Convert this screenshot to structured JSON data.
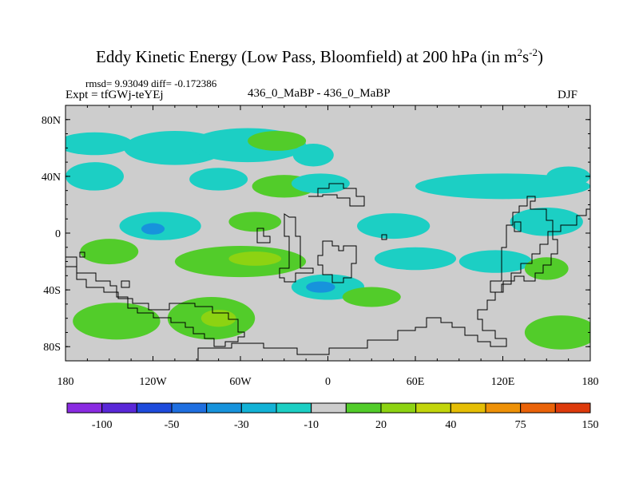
{
  "chart_data": {
    "type": "heatmap",
    "title": {
      "main": "Eddy Kinetic Energy (Low Pass, Bloomfield) at 200 hPa (in m",
      "sup1": "2",
      "mid": "s",
      "sup2": "-2",
      "end": ")"
    },
    "stats": "rmsd= 9.93049 diff= -0.172386",
    "expt_label": "Expt = tfGWj-teYEj",
    "center_label": "436_0_MaBP - 436_0_MaBP",
    "season_label": "DJF",
    "xlim": [
      -180,
      180
    ],
    "ylim": [
      -90,
      90
    ],
    "x_ticks": [
      {
        "value": -180,
        "label": "180"
      },
      {
        "value": -120,
        "label": "120W"
      },
      {
        "value": -60,
        "label": "60W"
      },
      {
        "value": 0,
        "label": "0"
      },
      {
        "value": 60,
        "label": "60E"
      },
      {
        "value": 120,
        "label": "120E"
      },
      {
        "value": 180,
        "label": "180"
      }
    ],
    "y_ticks": [
      {
        "value": 80,
        "label": "80N"
      },
      {
        "value": 40,
        "label": "40N"
      },
      {
        "value": 0,
        "label": "0"
      },
      {
        "value": -40,
        "label": "40S"
      },
      {
        "value": -80,
        "label": "80S"
      }
    ],
    "colorbar": {
      "colors": [
        "#8a2be2",
        "#5a28d8",
        "#1e4bdc",
        "#1f6fe0",
        "#1793dc",
        "#13b2d6",
        "#1ccfc4",
        "#cdcdcd",
        "#52cc2a",
        "#8dd312",
        "#c2d50b",
        "#e5be05",
        "#ee9107",
        "#ea6309",
        "#dd3a0b"
      ],
      "labels": [
        {
          "after": 1,
          "text": "-100"
        },
        {
          "after": 3,
          "text": "-50"
        },
        {
          "after": 5,
          "text": "-30"
        },
        {
          "after": 7,
          "text": "-10"
        },
        {
          "after": 9,
          "text": "20"
        },
        {
          "after": 11,
          "text": "40"
        },
        {
          "after": 13,
          "text": "75"
        },
        {
          "after": 15,
          "text": "150"
        }
      ]
    },
    "background_color": "#cdcdcd",
    "regions": [
      {
        "name": "NH cyan band west",
        "lon": -160,
        "lat": 63,
        "dlon": 26,
        "dlat": 8,
        "color": "#1ccfc4"
      },
      {
        "name": "NH cyan band center",
        "lon": -105,
        "lat": 60,
        "dlon": 35,
        "dlat": 12,
        "color": "#1ccfc4"
      },
      {
        "name": "NH cyan band east",
        "lon": -55,
        "lat": 62,
        "dlon": 40,
        "dlat": 12,
        "color": "#1ccfc4"
      },
      {
        "name": "NH green patch",
        "lon": -35,
        "lat": 65,
        "dlon": 20,
        "dlat": 7,
        "color": "#52cc2a"
      },
      {
        "name": "N Atlantic cyan",
        "lon": -10,
        "lat": 55,
        "dlon": 14,
        "dlat": 8,
        "color": "#1ccfc4"
      },
      {
        "name": "W Pacific cyan arm",
        "lon": -160,
        "lat": 40,
        "dlon": 20,
        "dlat": 10,
        "color": "#1ccfc4"
      },
      {
        "name": "Mid-lat green patch",
        "lon": -30,
        "lat": 33,
        "dlon": 22,
        "dlat": 8,
        "color": "#52cc2a"
      },
      {
        "name": "Mid-lat cyan west",
        "lon": -75,
        "lat": 38,
        "dlon": 20,
        "dlat": 8,
        "color": "#1ccfc4"
      },
      {
        "name": "Mid-lat cyan central",
        "lon": -5,
        "lat": 35,
        "dlon": 20,
        "dlat": 7,
        "color": "#1ccfc4"
      },
      {
        "name": "E hemisphere cyan band",
        "lon": 120,
        "lat": 33,
        "dlon": 60,
        "dlat": 9,
        "color": "#1ccfc4"
      },
      {
        "name": "Far east cyan",
        "lon": 165,
        "lat": 40,
        "dlon": 15,
        "dlat": 7,
        "color": "#1ccfc4"
      },
      {
        "name": "Tropical cyan west",
        "lon": -115,
        "lat": 5,
        "dlon": 28,
        "dlat": 10,
        "color": "#1ccfc4"
      },
      {
        "name": "Tropical blue core",
        "lon": -120,
        "lat": 3,
        "dlon": 8,
        "dlat": 4,
        "color": "#1793dc"
      },
      {
        "name": "Tropical green",
        "lon": -50,
        "lat": 8,
        "dlon": 18,
        "dlat": 7,
        "color": "#52cc2a"
      },
      {
        "name": "Africa cyan",
        "lon": 45,
        "lat": 5,
        "dlon": 25,
        "dlat": 9,
        "color": "#1ccfc4"
      },
      {
        "name": "E Pacific cyan",
        "lon": 150,
        "lat": 8,
        "dlon": 25,
        "dlat": 10,
        "color": "#1ccfc4"
      },
      {
        "name": "S cyan band",
        "lon": 60,
        "lat": -18,
        "dlon": 28,
        "dlat": 8,
        "color": "#1ccfc4"
      },
      {
        "name": "S green west",
        "lon": -150,
        "lat": -13,
        "dlon": 20,
        "dlat": 9,
        "color": "#52cc2a"
      },
      {
        "name": "S green central",
        "lon": -60,
        "lat": -20,
        "dlon": 45,
        "dlat": 11,
        "color": "#52cc2a"
      },
      {
        "name": "S yellow-green core",
        "lon": -50,
        "lat": -18,
        "dlon": 18,
        "dlat": 5,
        "color": "#8dd312"
      },
      {
        "name": "SW cyan",
        "lon": 0,
        "lat": -38,
        "dlon": 25,
        "dlat": 9,
        "color": "#1ccfc4"
      },
      {
        "name": "SW blue core",
        "lon": -5,
        "lat": -38,
        "dlon": 10,
        "dlat": 4,
        "color": "#1793dc"
      },
      {
        "name": "S green east",
        "lon": 30,
        "lat": -45,
        "dlon": 20,
        "dlat": 7,
        "color": "#52cc2a"
      },
      {
        "name": "S cyan east",
        "lon": 115,
        "lat": -20,
        "dlon": 25,
        "dlat": 8,
        "color": "#1ccfc4"
      },
      {
        "name": "S green far east",
        "lon": 150,
        "lat": -25,
        "dlon": 15,
        "dlat": 8,
        "color": "#52cc2a"
      },
      {
        "name": "SH green band west",
        "lon": -145,
        "lat": -62,
        "dlon": 30,
        "dlat": 13,
        "color": "#52cc2a"
      },
      {
        "name": "SH green band central",
        "lon": -80,
        "lat": -60,
        "dlon": 30,
        "dlat": 15,
        "color": "#52cc2a"
      },
      {
        "name": "SH yellow-green core",
        "lon": -75,
        "lat": -60,
        "dlon": 12,
        "dlat": 6,
        "color": "#8dd312"
      },
      {
        "name": "SH green east",
        "lon": 160,
        "lat": -70,
        "dlon": 25,
        "dlat": 12,
        "color": "#52cc2a"
      }
    ]
  }
}
